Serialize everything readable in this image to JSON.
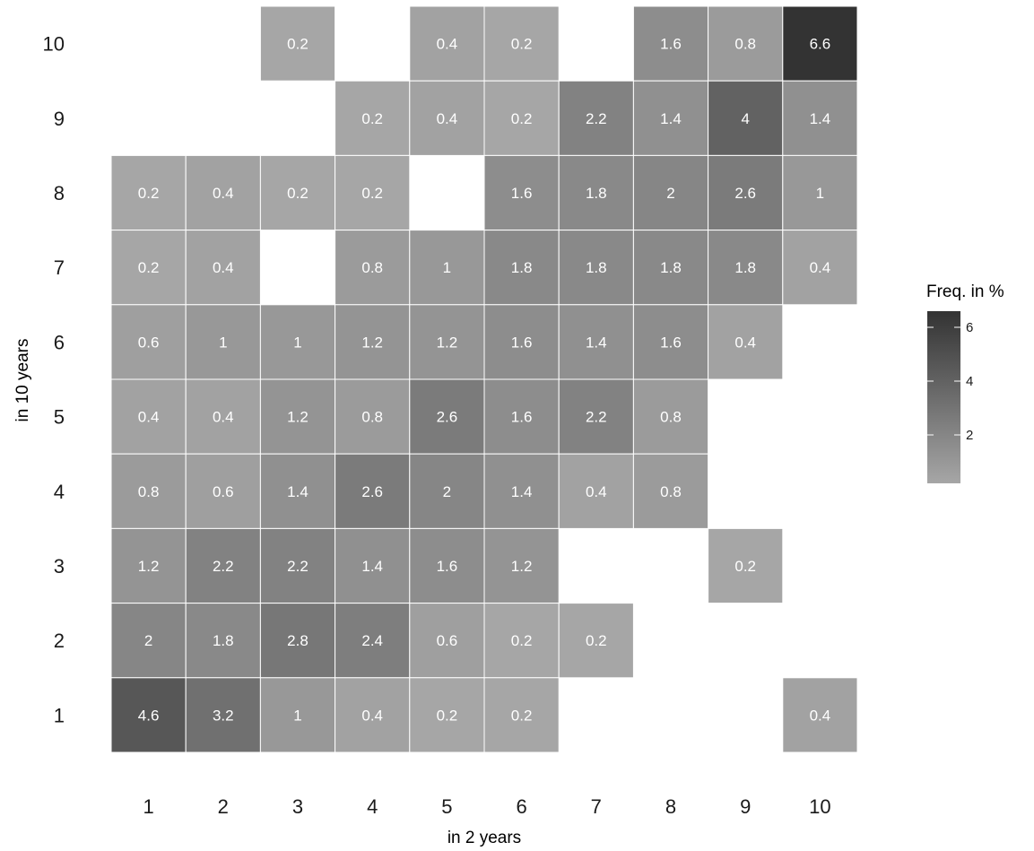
{
  "chart_data": {
    "type": "heatmap",
    "title": "",
    "xlabel": "in 2 years",
    "ylabel": "in 10 years",
    "x_categories": [
      "1",
      "2",
      "3",
      "4",
      "5",
      "6",
      "7",
      "8",
      "9",
      "10"
    ],
    "y_categories": [
      "1",
      "2",
      "3",
      "4",
      "5",
      "6",
      "7",
      "8",
      "9",
      "10"
    ],
    "legend": {
      "title": "Freq. in %",
      "ticks": [
        "2",
        "4",
        "6"
      ],
      "min": 0.2,
      "max": 6.6,
      "low_color": "#a6a6a6",
      "high_color": "#333333",
      "placement": "right"
    },
    "grid": false,
    "cells": [
      {
        "x": "3",
        "y": "10",
        "v": 0.2,
        "label": "0.2"
      },
      {
        "x": "5",
        "y": "10",
        "v": 0.4,
        "label": "0.4"
      },
      {
        "x": "6",
        "y": "10",
        "v": 0.2,
        "label": "0.2"
      },
      {
        "x": "8",
        "y": "10",
        "v": 1.6,
        "label": "1.6"
      },
      {
        "x": "9",
        "y": "10",
        "v": 0.8,
        "label": "0.8"
      },
      {
        "x": "10",
        "y": "10",
        "v": 6.6,
        "label": "6.6"
      },
      {
        "x": "4",
        "y": "9",
        "v": 0.2,
        "label": "0.2"
      },
      {
        "x": "5",
        "y": "9",
        "v": 0.4,
        "label": "0.4"
      },
      {
        "x": "6",
        "y": "9",
        "v": 0.2,
        "label": "0.2"
      },
      {
        "x": "7",
        "y": "9",
        "v": 2.2,
        "label": "2.2"
      },
      {
        "x": "8",
        "y": "9",
        "v": 1.4,
        "label": "1.4"
      },
      {
        "x": "9",
        "y": "9",
        "v": 4,
        "label": "4"
      },
      {
        "x": "10",
        "y": "9",
        "v": 1.4,
        "label": "1.4"
      },
      {
        "x": "1",
        "y": "8",
        "v": 0.2,
        "label": "0.2"
      },
      {
        "x": "2",
        "y": "8",
        "v": 0.4,
        "label": "0.4"
      },
      {
        "x": "3",
        "y": "8",
        "v": 0.2,
        "label": "0.2"
      },
      {
        "x": "4",
        "y": "8",
        "v": 0.2,
        "label": "0.2"
      },
      {
        "x": "6",
        "y": "8",
        "v": 1.6,
        "label": "1.6"
      },
      {
        "x": "7",
        "y": "8",
        "v": 1.8,
        "label": "1.8"
      },
      {
        "x": "8",
        "y": "8",
        "v": 2,
        "label": "2"
      },
      {
        "x": "9",
        "y": "8",
        "v": 2.6,
        "label": "2.6"
      },
      {
        "x": "10",
        "y": "8",
        "v": 1,
        "label": "1"
      },
      {
        "x": "1",
        "y": "7",
        "v": 0.2,
        "label": "0.2"
      },
      {
        "x": "2",
        "y": "7",
        "v": 0.4,
        "label": "0.4"
      },
      {
        "x": "4",
        "y": "7",
        "v": 0.8,
        "label": "0.8"
      },
      {
        "x": "5",
        "y": "7",
        "v": 1,
        "label": "1"
      },
      {
        "x": "6",
        "y": "7",
        "v": 1.8,
        "label": "1.8"
      },
      {
        "x": "7",
        "y": "7",
        "v": 1.8,
        "label": "1.8"
      },
      {
        "x": "8",
        "y": "7",
        "v": 1.8,
        "label": "1.8"
      },
      {
        "x": "9",
        "y": "7",
        "v": 1.8,
        "label": "1.8"
      },
      {
        "x": "10",
        "y": "7",
        "v": 0.4,
        "label": "0.4"
      },
      {
        "x": "1",
        "y": "6",
        "v": 0.6,
        "label": "0.6"
      },
      {
        "x": "2",
        "y": "6",
        "v": 1,
        "label": "1"
      },
      {
        "x": "3",
        "y": "6",
        "v": 1,
        "label": "1"
      },
      {
        "x": "4",
        "y": "6",
        "v": 1.2,
        "label": "1.2"
      },
      {
        "x": "5",
        "y": "6",
        "v": 1.2,
        "label": "1.2"
      },
      {
        "x": "6",
        "y": "6",
        "v": 1.6,
        "label": "1.6"
      },
      {
        "x": "7",
        "y": "6",
        "v": 1.4,
        "label": "1.4"
      },
      {
        "x": "8",
        "y": "6",
        "v": 1.6,
        "label": "1.6"
      },
      {
        "x": "9",
        "y": "6",
        "v": 0.4,
        "label": "0.4"
      },
      {
        "x": "1",
        "y": "5",
        "v": 0.4,
        "label": "0.4"
      },
      {
        "x": "2",
        "y": "5",
        "v": 0.4,
        "label": "0.4"
      },
      {
        "x": "3",
        "y": "5",
        "v": 1.2,
        "label": "1.2"
      },
      {
        "x": "4",
        "y": "5",
        "v": 0.8,
        "label": "0.8"
      },
      {
        "x": "5",
        "y": "5",
        "v": 2.6,
        "label": "2.6"
      },
      {
        "x": "6",
        "y": "5",
        "v": 1.6,
        "label": "1.6"
      },
      {
        "x": "7",
        "y": "5",
        "v": 2.2,
        "label": "2.2"
      },
      {
        "x": "8",
        "y": "5",
        "v": 0.8,
        "label": "0.8"
      },
      {
        "x": "1",
        "y": "4",
        "v": 0.8,
        "label": "0.8"
      },
      {
        "x": "2",
        "y": "4",
        "v": 0.6,
        "label": "0.6"
      },
      {
        "x": "3",
        "y": "4",
        "v": 1.4,
        "label": "1.4"
      },
      {
        "x": "4",
        "y": "4",
        "v": 2.6,
        "label": "2.6"
      },
      {
        "x": "5",
        "y": "4",
        "v": 2,
        "label": "2"
      },
      {
        "x": "6",
        "y": "4",
        "v": 1.4,
        "label": "1.4"
      },
      {
        "x": "7",
        "y": "4",
        "v": 0.4,
        "label": "0.4"
      },
      {
        "x": "8",
        "y": "4",
        "v": 0.8,
        "label": "0.8"
      },
      {
        "x": "1",
        "y": "3",
        "v": 1.2,
        "label": "1.2"
      },
      {
        "x": "2",
        "y": "3",
        "v": 2.2,
        "label": "2.2"
      },
      {
        "x": "3",
        "y": "3",
        "v": 2.2,
        "label": "2.2"
      },
      {
        "x": "4",
        "y": "3",
        "v": 1.4,
        "label": "1.4"
      },
      {
        "x": "5",
        "y": "3",
        "v": 1.6,
        "label": "1.6"
      },
      {
        "x": "6",
        "y": "3",
        "v": 1.2,
        "label": "1.2"
      },
      {
        "x": "9",
        "y": "3",
        "v": 0.2,
        "label": "0.2"
      },
      {
        "x": "1",
        "y": "2",
        "v": 2,
        "label": "2"
      },
      {
        "x": "2",
        "y": "2",
        "v": 1.8,
        "label": "1.8"
      },
      {
        "x": "3",
        "y": "2",
        "v": 2.8,
        "label": "2.8"
      },
      {
        "x": "4",
        "y": "2",
        "v": 2.4,
        "label": "2.4"
      },
      {
        "x": "5",
        "y": "2",
        "v": 0.6,
        "label": "0.6"
      },
      {
        "x": "6",
        "y": "2",
        "v": 0.2,
        "label": "0.2"
      },
      {
        "x": "7",
        "y": "2",
        "v": 0.2,
        "label": "0.2"
      },
      {
        "x": "1",
        "y": "1",
        "v": 4.6,
        "label": "4.6"
      },
      {
        "x": "2",
        "y": "1",
        "v": 3.2,
        "label": "3.2"
      },
      {
        "x": "3",
        "y": "1",
        "v": 1,
        "label": "1"
      },
      {
        "x": "4",
        "y": "1",
        "v": 0.4,
        "label": "0.4"
      },
      {
        "x": "5",
        "y": "1",
        "v": 0.2,
        "label": "0.2"
      },
      {
        "x": "6",
        "y": "1",
        "v": 0.2,
        "label": "0.2"
      },
      {
        "x": "10",
        "y": "1",
        "v": 0.4,
        "label": "0.4"
      }
    ]
  }
}
